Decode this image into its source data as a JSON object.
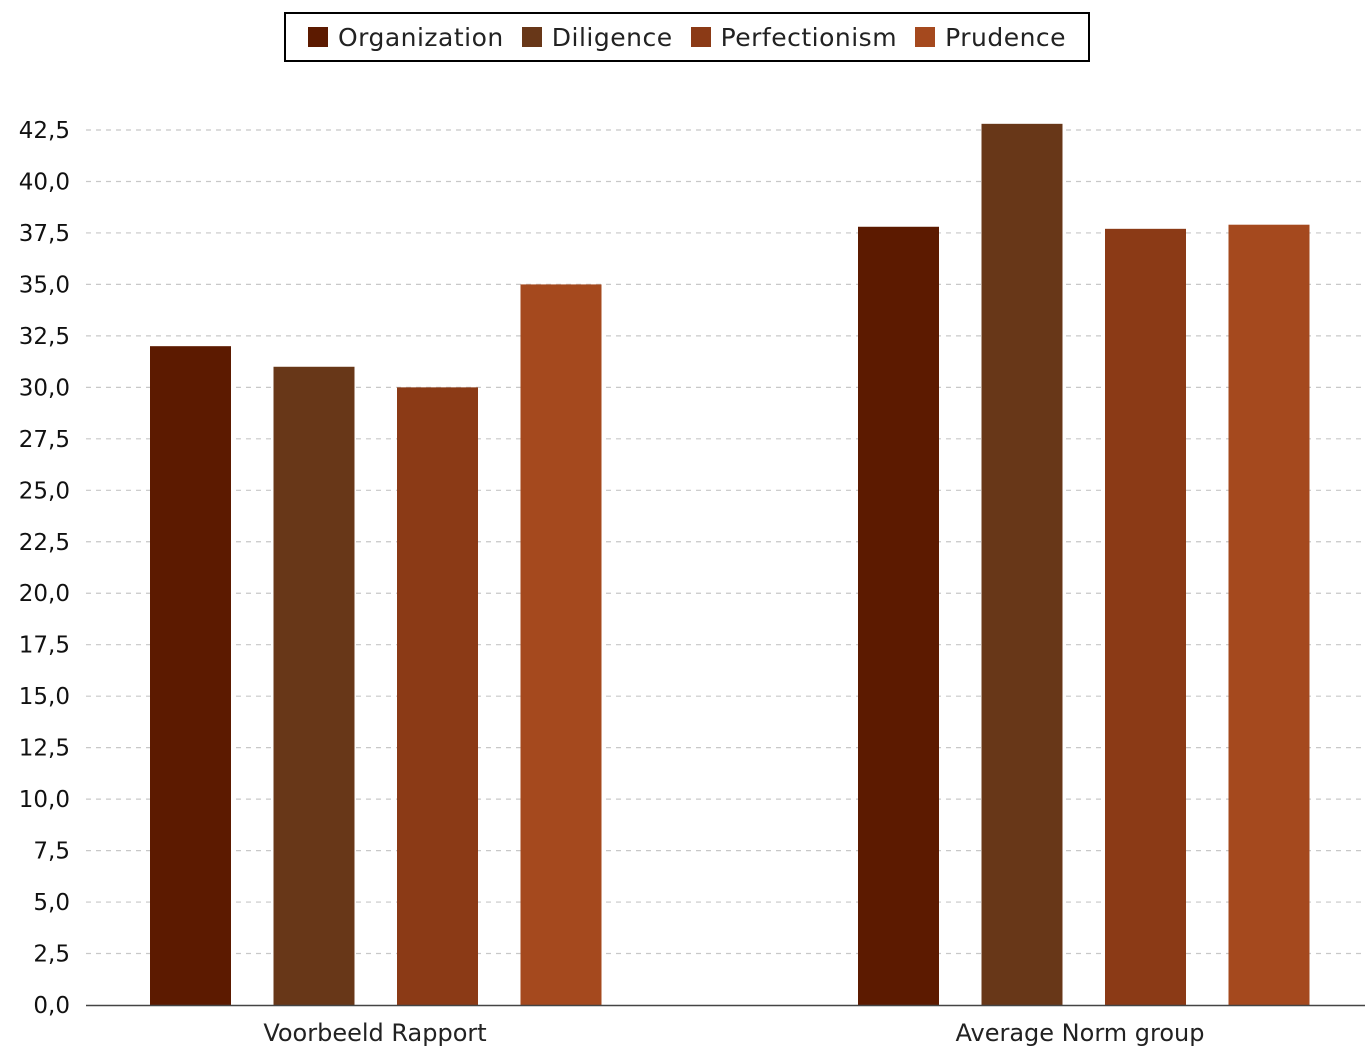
{
  "chart_data": {
    "type": "bar",
    "categories": [
      "Voorbeeld Rapport",
      "Average Norm group"
    ],
    "series": [
      {
        "name": "Organization",
        "color": "#5c1a00",
        "values": [
          32.0,
          37.8
        ]
      },
      {
        "name": "Diligence",
        "color": "#683718",
        "values": [
          31.0,
          42.8
        ]
      },
      {
        "name": "Perfectionism",
        "color": "#8b3a16",
        "values": [
          30.0,
          37.7
        ]
      },
      {
        "name": "Prudence",
        "color": "#a5491e",
        "values": [
          35.0,
          37.9
        ]
      }
    ],
    "y_ticks": [
      "0,0",
      "2,5",
      "5,0",
      "7,5",
      "10,0",
      "12,5",
      "15,0",
      "17,5",
      "20,0",
      "22,5",
      "25,0",
      "27,5",
      "30,0",
      "32,5",
      "35,0",
      "37,5",
      "40,0",
      "42,5"
    ],
    "ylim": [
      0,
      42.5
    ],
    "grid": true,
    "legend_position": "top-center"
  }
}
